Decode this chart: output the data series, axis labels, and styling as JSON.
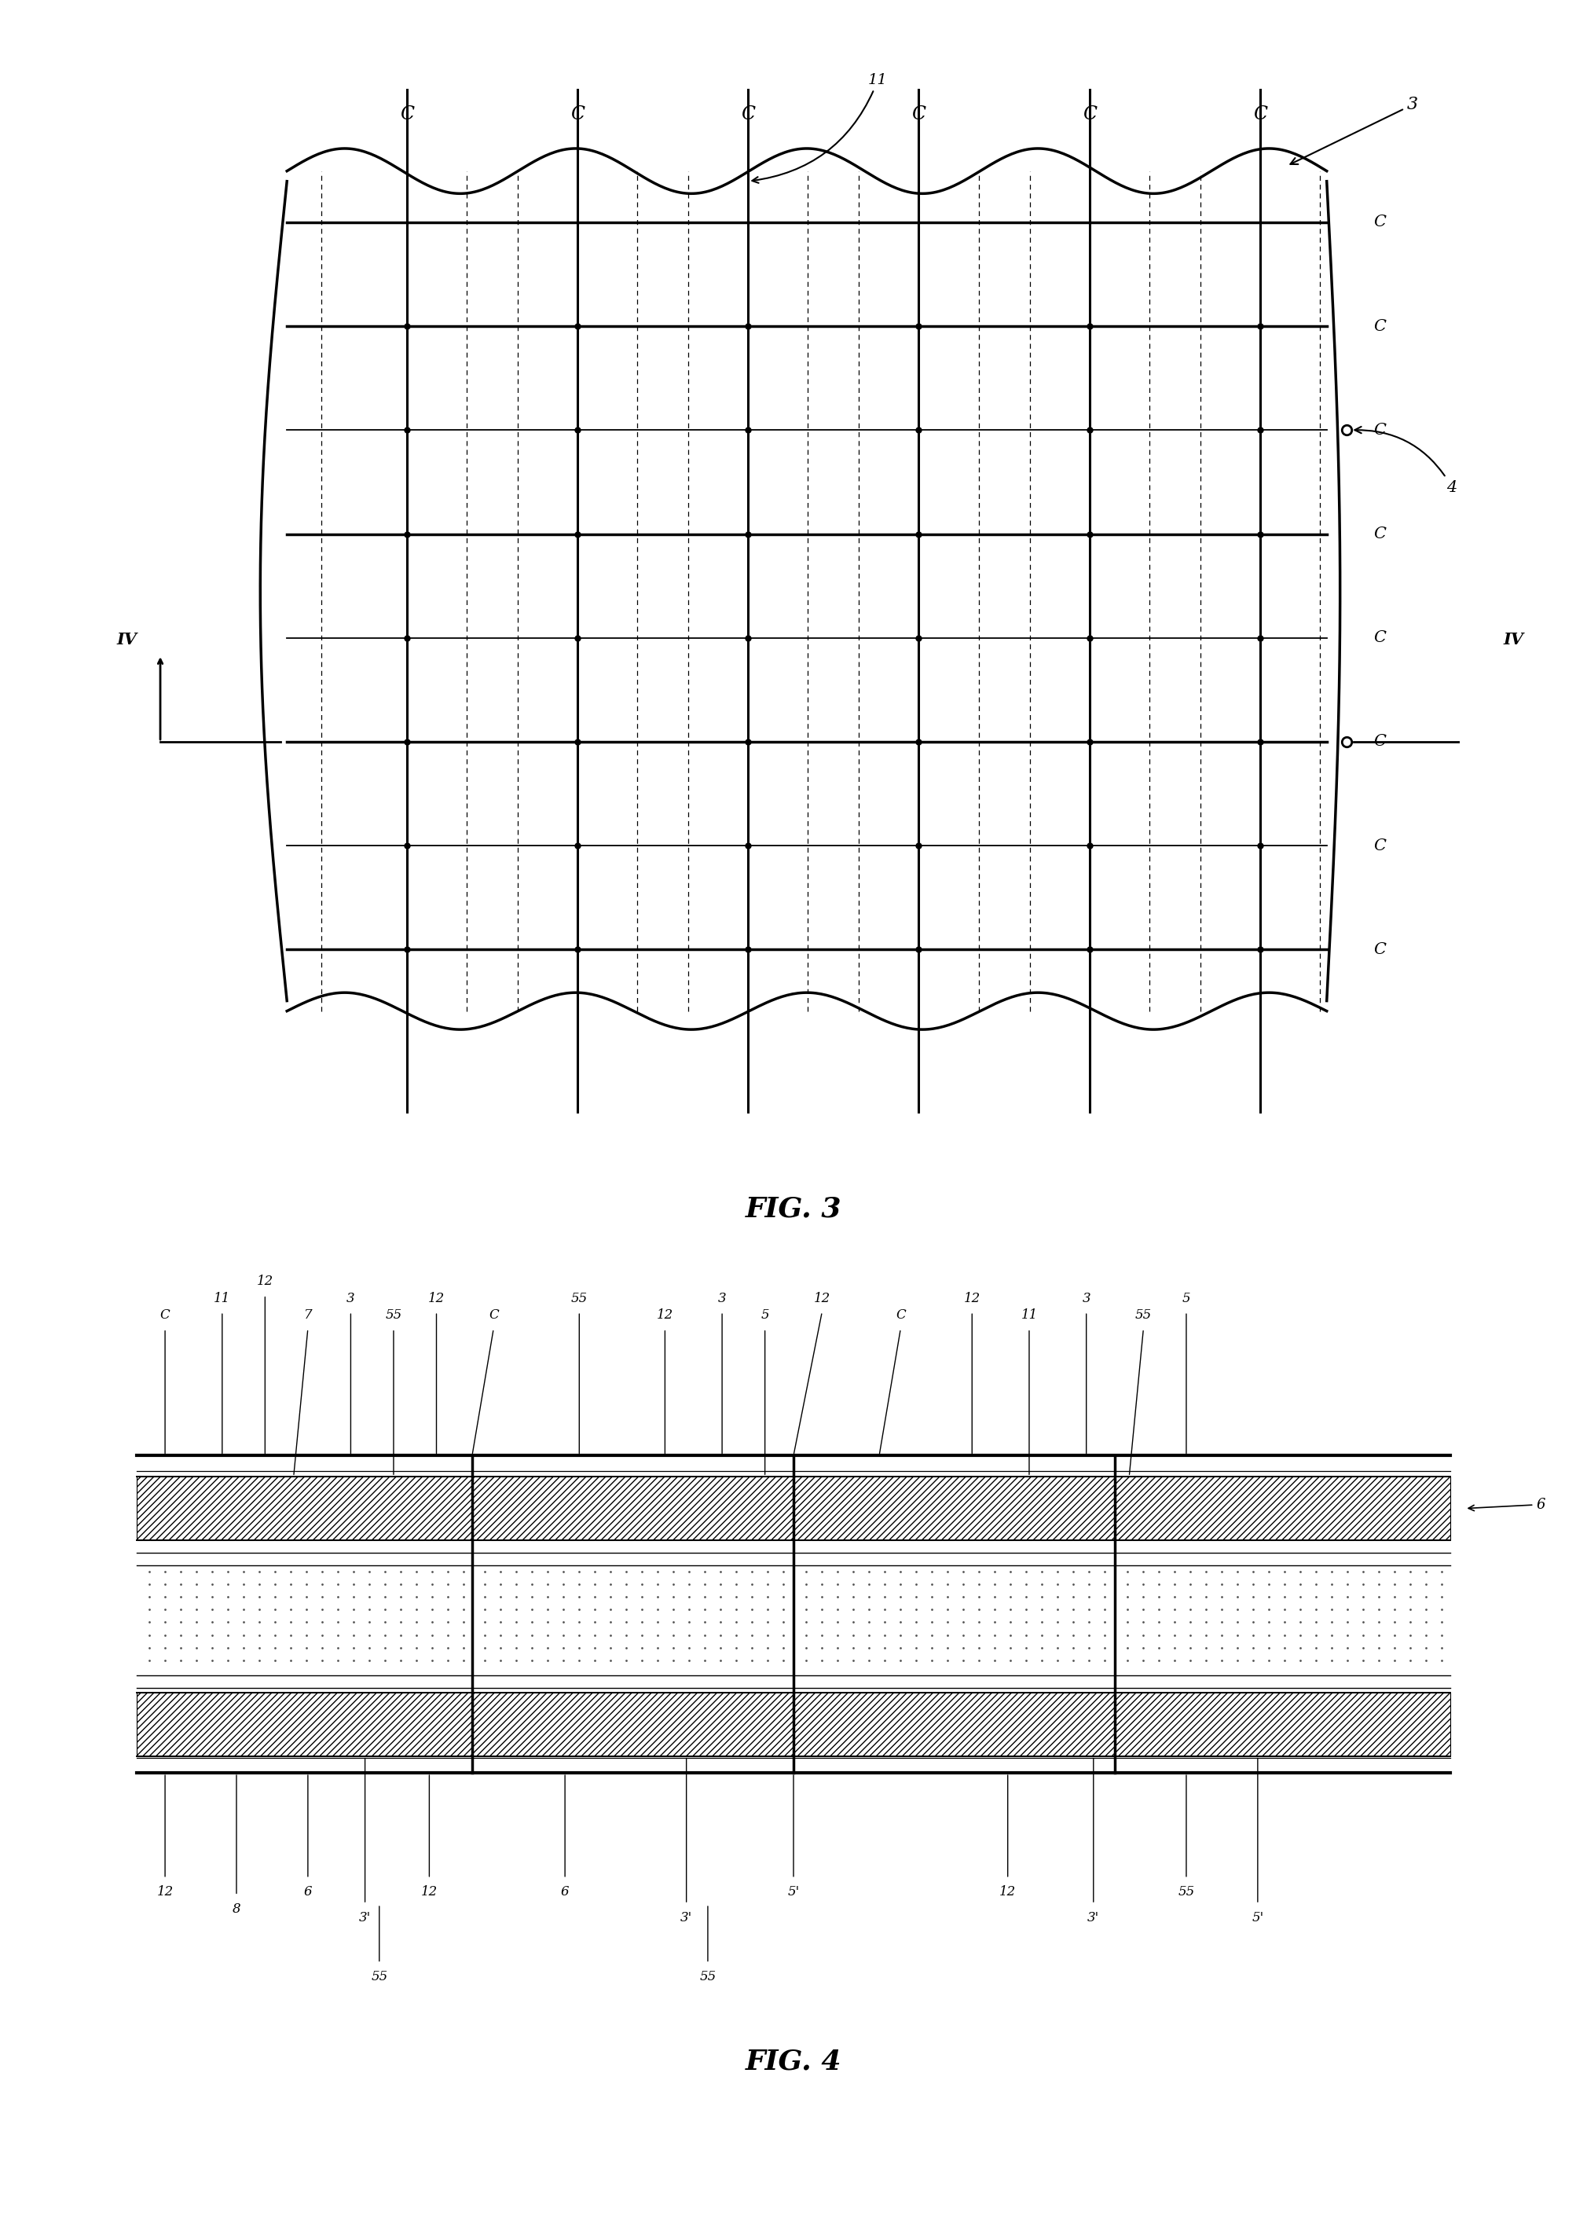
{
  "fig3": {
    "title": "FIG. 3",
    "col_labels_top": [
      "C",
      "C",
      "C",
      "C",
      "C",
      "C"
    ],
    "row_labels_right": [
      "C",
      "C",
      "C",
      "C",
      "C",
      "C",
      "C",
      "C"
    ],
    "sheet_ref": "3",
    "cut_ref": "4",
    "polymer_ref": "11",
    "iv_label": "IV",
    "num_solid_cols": 6,
    "num_bold_rows": 5,
    "num_total_rows": 8,
    "bold_row_indices": [
      0,
      2,
      4,
      6,
      7
    ],
    "open_circle_row_indices": [
      2,
      5
    ],
    "dot_row_indices": [
      0,
      1,
      2,
      3,
      4,
      5,
      6
    ],
    "background": "#ffffff"
  },
  "fig4": {
    "title": "FIG. 4",
    "top_labels": [
      "C",
      "11",
      "12",
      "7",
      "3",
      "55",
      "12",
      "C",
      "55",
      "12",
      "3",
      "5",
      "12",
      "C",
      "12",
      "11",
      "3",
      "55",
      "5"
    ],
    "bot_labels": [
      "12",
      "8",
      "6",
      "3'",
      "12",
      "55",
      "6",
      "3'",
      "5'",
      "55",
      "12",
      "3'",
      "55",
      "5'"
    ],
    "ref6": "6",
    "background": "#ffffff"
  }
}
